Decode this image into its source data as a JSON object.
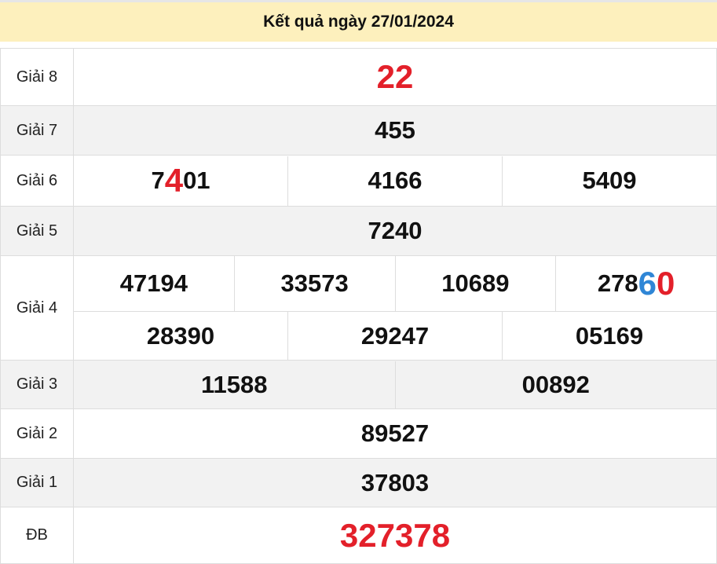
{
  "title": "Kết quả ngày 27/01/2024",
  "colors": {
    "header_bg": "#fdf0bd",
    "red": "#e3202a",
    "blue": "#2f86d6",
    "alt_row": "#f2f2f2"
  },
  "prizes": [
    {
      "label": "Giải 8",
      "numbers": [
        [
          {
            "t": "22",
            "c": "red",
            "big": true
          }
        ]
      ]
    },
    {
      "label": "Giải 7",
      "numbers": [
        [
          {
            "t": "455"
          }
        ]
      ]
    },
    {
      "label": "Giải 6",
      "numbers": [
        [
          {
            "t": "7"
          },
          {
            "t": "4",
            "c": "red",
            "big": true
          },
          {
            "t": "01"
          }
        ],
        [
          {
            "t": "4166"
          }
        ],
        [
          {
            "t": "5409"
          }
        ]
      ]
    },
    {
      "label": "Giải 5",
      "numbers": [
        [
          {
            "t": "7240"
          }
        ]
      ]
    },
    {
      "label": "Giải 4",
      "numbers": [
        [
          {
            "t": "47194"
          }
        ],
        [
          {
            "t": "33573"
          }
        ],
        [
          {
            "t": "10689"
          }
        ],
        [
          {
            "t": "278"
          },
          {
            "t": "6",
            "c": "blue",
            "big": true
          },
          {
            "t": "0",
            "c": "red",
            "big": true
          }
        ]
      ],
      "numbers2": [
        [
          {
            "t": "28390"
          }
        ],
        [
          {
            "t": "29247"
          }
        ],
        [
          {
            "t": "05169"
          }
        ]
      ]
    },
    {
      "label": "Giải 3",
      "numbers": [
        [
          {
            "t": "11588"
          }
        ],
        [
          {
            "t": "00892"
          }
        ]
      ]
    },
    {
      "label": "Giải 2",
      "numbers": [
        [
          {
            "t": "89527"
          }
        ]
      ]
    },
    {
      "label": "Giải 1",
      "numbers": [
        [
          {
            "t": "37803"
          }
        ]
      ]
    },
    {
      "label": "ĐB",
      "numbers": [
        [
          {
            "t": "327378",
            "c": "red",
            "big": true
          }
        ]
      ]
    }
  ]
}
